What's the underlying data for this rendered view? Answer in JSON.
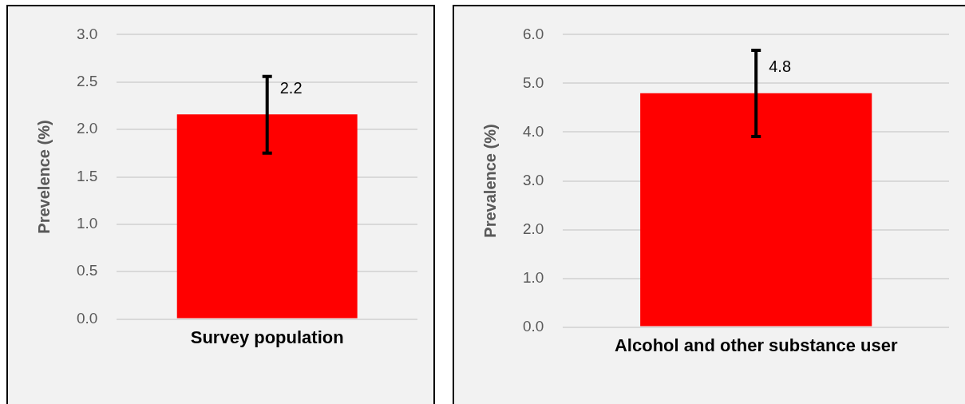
{
  "chart_data": [
    {
      "type": "bar",
      "ylabel": "Prevelence (%)",
      "categories": [
        "Survey population"
      ],
      "values": [
        2.16
      ],
      "errors": [
        [
          1.75,
          2.56
        ]
      ],
      "value_labels": [
        "2.2"
      ],
      "color": "#ff0000",
      "ylim": [
        0,
        3
      ],
      "yticks": [
        {
          "value": 0,
          "label": "0.0"
        },
        {
          "value": 0.5,
          "label": "0.5"
        },
        {
          "value": 1,
          "label": "1.0"
        },
        {
          "value": 1.5,
          "label": "1.5"
        },
        {
          "value": 2,
          "label": "2.0"
        },
        {
          "value": 2.5,
          "label": "2.5"
        },
        {
          "value": 3,
          "label": "3.0"
        }
      ],
      "grid": "y",
      "legend": false
    },
    {
      "type": "bar",
      "ylabel": "Prevalence (%)",
      "categories": [
        "Alcohol and other substance user"
      ],
      "values": [
        4.8
      ],
      "errors": [
        [
          3.91,
          5.68
        ]
      ],
      "value_labels": [
        "4.8"
      ],
      "color": "#ff0000",
      "ylim": [
        0,
        6
      ],
      "yticks": [
        {
          "value": 0,
          "label": "0.0"
        },
        {
          "value": 1,
          "label": "1.0"
        },
        {
          "value": 2,
          "label": "2.0"
        },
        {
          "value": 3,
          "label": "3.0"
        },
        {
          "value": 4,
          "label": "4.0"
        },
        {
          "value": 5,
          "label": "5.0"
        },
        {
          "value": 6,
          "label": "6.0"
        }
      ],
      "grid": "y",
      "legend": false
    }
  ]
}
